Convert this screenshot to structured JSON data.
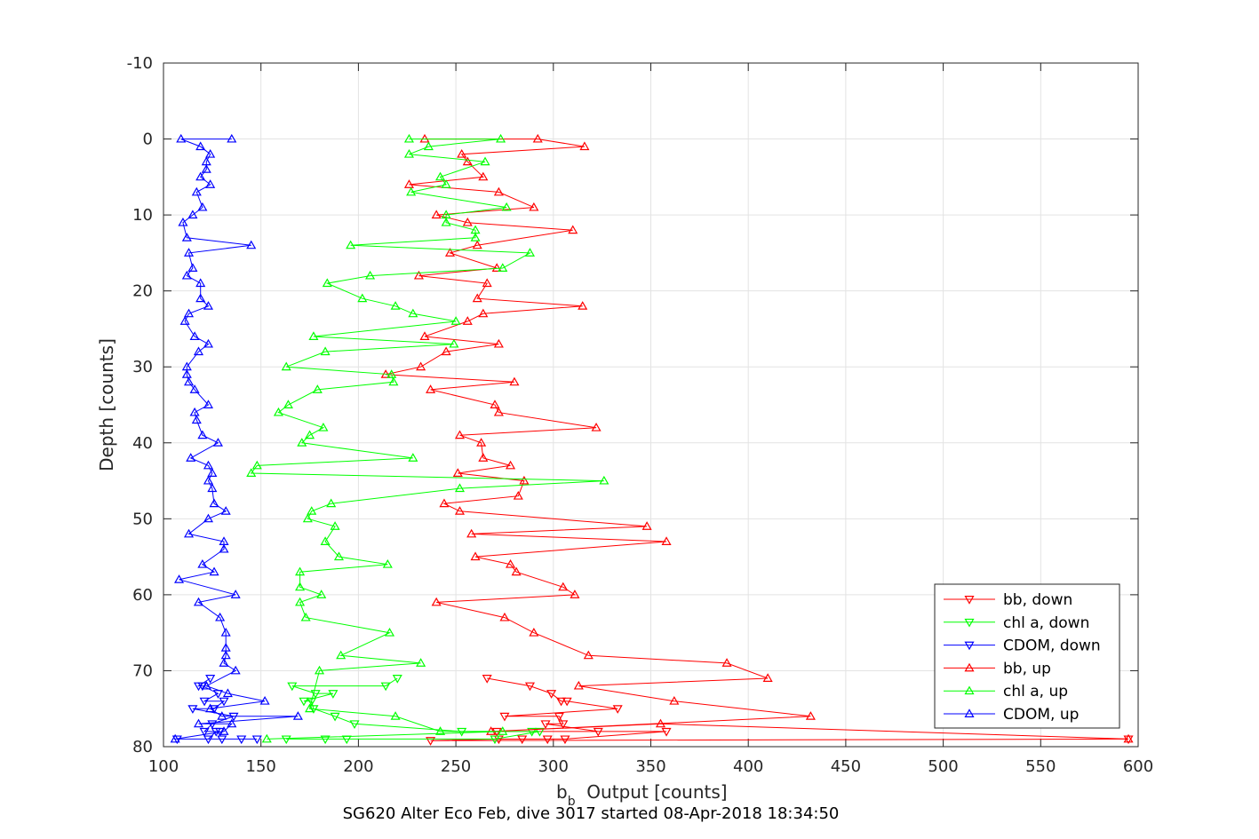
{
  "chart_data": {
    "type": "line",
    "title": "SG620 Alter Eco Feb, dive 3017 started 08-Apr-2018 18:34:50",
    "xlabel_main": "b",
    "xlabel_sub": "b",
    "xlabel_rest": "  Output [counts]",
    "ylabel": "Depth [counts]",
    "xlim": [
      100,
      600
    ],
    "ylim": [
      -10,
      80
    ],
    "y_reversed": true,
    "xticks": [
      100,
      150,
      200,
      250,
      300,
      350,
      400,
      450,
      500,
      550,
      600
    ],
    "yticks": [
      -10,
      0,
      10,
      20,
      30,
      40,
      50,
      60,
      70,
      80
    ],
    "grid": true,
    "legend_position": "bottom-right",
    "series": [
      {
        "name": "bb, down",
        "color": "#ff0000",
        "marker": "triangle-down",
        "points": [
          [
            266,
            71
          ],
          [
            288,
            72
          ],
          [
            299,
            73
          ],
          [
            304,
            74
          ],
          [
            307,
            74
          ],
          [
            333,
            75
          ],
          [
            275,
            76
          ],
          [
            303,
            76
          ],
          [
            305,
            77
          ],
          [
            296,
            77
          ],
          [
            323,
            78
          ],
          [
            271,
            78
          ],
          [
            358,
            78
          ],
          [
            306,
            79
          ],
          [
            284,
            79
          ],
          [
            297,
            79
          ],
          [
            272,
            79
          ],
          [
            237,
            79.2
          ],
          [
            595,
            79
          ]
        ]
      },
      {
        "name": "chl a, down",
        "color": "#00ff00",
        "marker": "triangle-down",
        "points": [
          [
            220,
            71
          ],
          [
            214,
            72
          ],
          [
            166,
            72
          ],
          [
            178,
            73
          ],
          [
            187,
            73
          ],
          [
            172,
            74
          ],
          [
            176,
            74
          ],
          [
            177,
            75
          ],
          [
            188,
            76
          ],
          [
            198,
            77
          ],
          [
            253,
            78
          ],
          [
            289,
            78
          ],
          [
            293,
            78
          ],
          [
            270,
            79
          ],
          [
            183,
            79
          ],
          [
            163,
            79
          ],
          [
            194,
            79
          ]
        ]
      },
      {
        "name": "CDOM, down",
        "color": "#0000ff",
        "marker": "triangle-down",
        "points": [
          [
            124,
            71
          ],
          [
            118,
            72
          ],
          [
            120,
            72
          ],
          [
            128,
            73
          ],
          [
            121,
            74
          ],
          [
            131,
            74
          ],
          [
            126,
            75
          ],
          [
            115,
            75
          ],
          [
            136,
            76
          ],
          [
            125,
            77
          ],
          [
            121,
            78
          ],
          [
            129,
            78
          ],
          [
            127,
            78
          ],
          [
            123,
            79
          ],
          [
            130,
            79
          ],
          [
            107,
            79
          ],
          [
            140,
            79
          ],
          [
            148,
            79
          ]
        ]
      },
      {
        "name": "bb, up",
        "color": "#ff0000",
        "marker": "triangle-up",
        "points": [
          [
            234,
            0
          ],
          [
            292,
            0
          ],
          [
            316,
            1
          ],
          [
            253,
            2
          ],
          [
            256,
            3
          ],
          [
            264,
            5
          ],
          [
            226,
            6
          ],
          [
            272,
            7
          ],
          [
            290,
            9
          ],
          [
            240,
            10
          ],
          [
            256,
            11
          ],
          [
            310,
            12
          ],
          [
            261,
            14
          ],
          [
            247,
            15
          ],
          [
            271,
            17
          ],
          [
            231,
            18
          ],
          [
            266,
            19
          ],
          [
            261,
            21
          ],
          [
            315,
            22
          ],
          [
            264,
            23
          ],
          [
            256,
            24
          ],
          [
            234,
            26
          ],
          [
            272,
            27
          ],
          [
            245,
            28
          ],
          [
            232,
            30
          ],
          [
            214,
            31
          ],
          [
            280,
            32
          ],
          [
            237,
            33
          ],
          [
            270,
            35
          ],
          [
            272,
            36
          ],
          [
            322,
            38
          ],
          [
            252,
            39
          ],
          [
            263,
            40
          ],
          [
            264,
            42
          ],
          [
            278,
            43
          ],
          [
            251,
            44
          ],
          [
            285,
            45
          ],
          [
            282,
            47
          ],
          [
            244,
            48
          ],
          [
            252,
            49
          ],
          [
            348,
            51
          ],
          [
            258,
            52
          ],
          [
            358,
            53
          ],
          [
            260,
            55
          ],
          [
            278,
            56
          ],
          [
            281,
            57
          ],
          [
            305,
            59
          ],
          [
            311,
            60
          ],
          [
            240,
            61
          ],
          [
            275,
            63
          ],
          [
            290,
            65
          ],
          [
            318,
            68
          ],
          [
            389,
            69
          ],
          [
            410,
            71
          ],
          [
            313,
            72
          ],
          [
            362,
            74
          ],
          [
            432,
            76
          ],
          [
            268,
            78
          ],
          [
            355,
            77
          ],
          [
            595,
            79
          ]
        ]
      },
      {
        "name": "chl a, up",
        "color": "#00ff00",
        "marker": "triangle-up",
        "points": [
          [
            226,
            0
          ],
          [
            273,
            0
          ],
          [
            236,
            1
          ],
          [
            226,
            2
          ],
          [
            265,
            3
          ],
          [
            242,
            5
          ],
          [
            245,
            6
          ],
          [
            227,
            7
          ],
          [
            276,
            9
          ],
          [
            245,
            10
          ],
          [
            245,
            11
          ],
          [
            260,
            12
          ],
          [
            260,
            13
          ],
          [
            196,
            14
          ],
          [
            288,
            15
          ],
          [
            274,
            17
          ],
          [
            206,
            18
          ],
          [
            184,
            19
          ],
          [
            202,
            21
          ],
          [
            219,
            22
          ],
          [
            228,
            23
          ],
          [
            250,
            24
          ],
          [
            177,
            26
          ],
          [
            249,
            27
          ],
          [
            183,
            28
          ],
          [
            163,
            30
          ],
          [
            217,
            31
          ],
          [
            218,
            32
          ],
          [
            179,
            33
          ],
          [
            164,
            35
          ],
          [
            159,
            36
          ],
          [
            182,
            38
          ],
          [
            175,
            39
          ],
          [
            171,
            40
          ],
          [
            228,
            42
          ],
          [
            148,
            43
          ],
          [
            145,
            44
          ],
          [
            326,
            45
          ],
          [
            252,
            46
          ],
          [
            186,
            48
          ],
          [
            176,
            49
          ],
          [
            174,
            50
          ],
          [
            188,
            51
          ],
          [
            183,
            53
          ],
          [
            190,
            55
          ],
          [
            215,
            56
          ],
          [
            170,
            57
          ],
          [
            170,
            59
          ],
          [
            181,
            60
          ],
          [
            170,
            61
          ],
          [
            173,
            63
          ],
          [
            216,
            65
          ],
          [
            191,
            68
          ],
          [
            232,
            69
          ],
          [
            180,
            70
          ],
          [
            175,
            75
          ],
          [
            219,
            76
          ],
          [
            242,
            78
          ],
          [
            274,
            78
          ],
          [
            153,
            79
          ]
        ]
      },
      {
        "name": "CDOM, up",
        "color": "#0000ff",
        "marker": "triangle-up",
        "points": [
          [
            135,
            0
          ],
          [
            109,
            0
          ],
          [
            119,
            1
          ],
          [
            124,
            2
          ],
          [
            122,
            3
          ],
          [
            122,
            4
          ],
          [
            119,
            5
          ],
          [
            124,
            6
          ],
          [
            117,
            7
          ],
          [
            120,
            9
          ],
          [
            115,
            10
          ],
          [
            110,
            11
          ],
          [
            112,
            13
          ],
          [
            145,
            14
          ],
          [
            113,
            15
          ],
          [
            115,
            17
          ],
          [
            112,
            18
          ],
          [
            119,
            19
          ],
          [
            119,
            21
          ],
          [
            123,
            22
          ],
          [
            113,
            23
          ],
          [
            111,
            24
          ],
          [
            116,
            26
          ],
          [
            123,
            27
          ],
          [
            118,
            28
          ],
          [
            112,
            30
          ],
          [
            112,
            31
          ],
          [
            113,
            32
          ],
          [
            116,
            33
          ],
          [
            123,
            35
          ],
          [
            116,
            36
          ],
          [
            117,
            37
          ],
          [
            120,
            39
          ],
          [
            128,
            40
          ],
          [
            114,
            42
          ],
          [
            123,
            43
          ],
          [
            125,
            44
          ],
          [
            123,
            45
          ],
          [
            125,
            46
          ],
          [
            126,
            48
          ],
          [
            132,
            49
          ],
          [
            123,
            50
          ],
          [
            113,
            52
          ],
          [
            131,
            53
          ],
          [
            131,
            54
          ],
          [
            120,
            56
          ],
          [
            126,
            57
          ],
          [
            108,
            58
          ],
          [
            137,
            60
          ],
          [
            118,
            61
          ],
          [
            129,
            63
          ],
          [
            132,
            65
          ],
          [
            132,
            67
          ],
          [
            132,
            68
          ],
          [
            131,
            69
          ],
          [
            137,
            70
          ],
          [
            122,
            72
          ],
          [
            133,
            73
          ],
          [
            152,
            74
          ],
          [
            124,
            75
          ],
          [
            130,
            76
          ],
          [
            169,
            76
          ],
          [
            118,
            77
          ],
          [
            135,
            77
          ],
          [
            131,
            78
          ],
          [
            106,
            79
          ]
        ]
      }
    ]
  }
}
